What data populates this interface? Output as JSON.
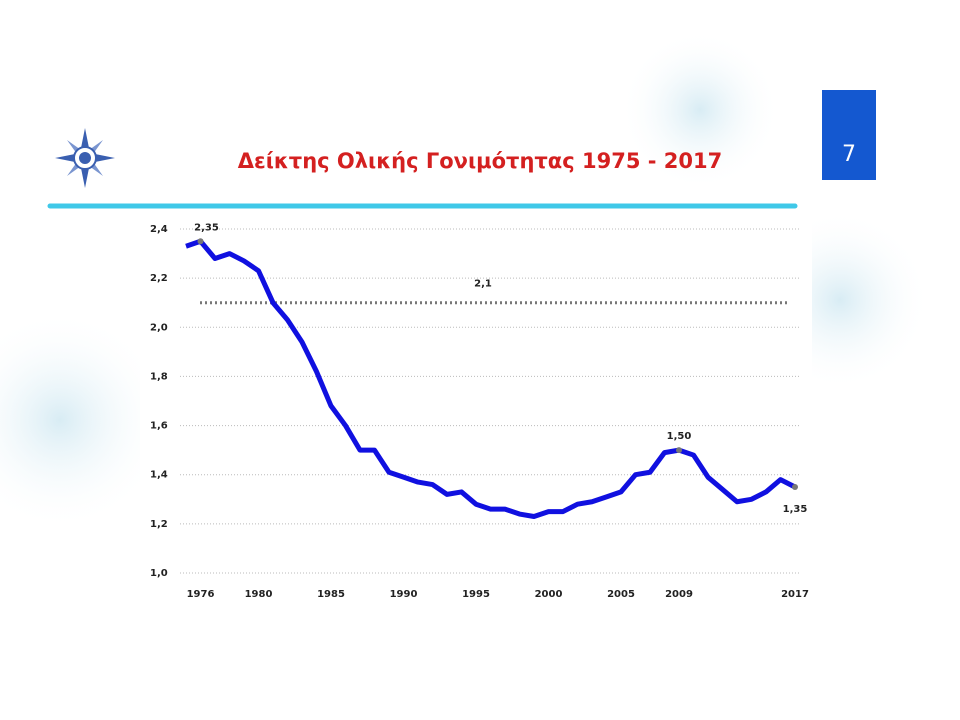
{
  "page_number": "7",
  "chart_data": {
    "type": "line",
    "title": "Δείκτης Ολικής Γονιμότητας  1975 - 2017",
    "x": [
      1975,
      1976,
      1977,
      1978,
      1979,
      1980,
      1981,
      1982,
      1983,
      1984,
      1985,
      1986,
      1987,
      1988,
      1989,
      1990,
      1991,
      1992,
      1993,
      1994,
      1995,
      1996,
      1997,
      1998,
      1999,
      2000,
      2001,
      2002,
      2003,
      2004,
      2005,
      2006,
      2007,
      2008,
      2009,
      2010,
      2011,
      2012,
      2013,
      2014,
      2015,
      2016,
      2017
    ],
    "series": [
      {
        "color": "#1010e0",
        "values": [
          2.33,
          2.35,
          2.28,
          2.3,
          2.27,
          2.23,
          2.1,
          2.03,
          1.94,
          1.82,
          1.68,
          1.6,
          1.5,
          1.5,
          1.41,
          1.39,
          1.37,
          1.36,
          1.32,
          1.33,
          1.28,
          1.26,
          1.26,
          1.24,
          1.23,
          1.25,
          1.25,
          1.28,
          1.29,
          1.31,
          1.33,
          1.4,
          1.41,
          1.49,
          1.5,
          1.48,
          1.39,
          1.34,
          1.29,
          1.3,
          1.33,
          1.38,
          1.35
        ]
      }
    ],
    "xlim": [
      1975,
      2017
    ],
    "xticks": [
      1976,
      1980,
      1985,
      1990,
      1995,
      2000,
      2005,
      2009,
      2017
    ],
    "ylim": [
      1.0,
      2.4
    ],
    "yticks": [
      {
        "value": 1.0,
        "label": "1,0"
      },
      {
        "value": 1.2,
        "label": "1,2"
      },
      {
        "value": 1.4,
        "label": "1,4"
      },
      {
        "value": 1.6,
        "label": "1,6"
      },
      {
        "value": 1.8,
        "label": "1,8"
      },
      {
        "value": 2.0,
        "label": "2,0"
      },
      {
        "value": 2.2,
        "label": "2,2"
      },
      {
        "value": 2.4,
        "label": "2,4"
      }
    ],
    "grid": true,
    "reference_line": {
      "value": 2.1,
      "label": "2,1",
      "color": "#777777"
    },
    "annotations": [
      {
        "x": 1976,
        "value": 2.35,
        "label": "2,35"
      },
      {
        "x": 2009,
        "value": 1.5,
        "label": "1,50"
      },
      {
        "x": 2017,
        "value": 1.35,
        "label": "1,35"
      }
    ]
  }
}
